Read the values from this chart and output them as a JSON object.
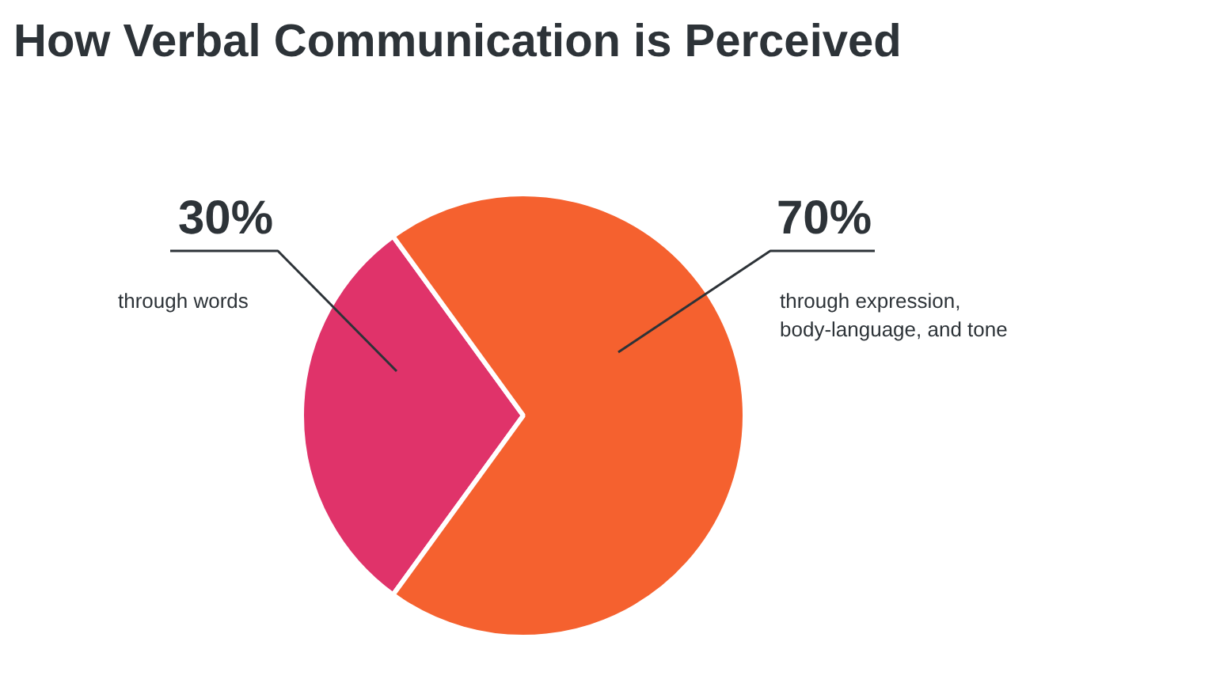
{
  "chart_data": {
    "type": "pie",
    "title": "How Verbal Communication is Perceived",
    "categories": [
      "through words",
      "through expression,\nbody-language, and tone"
    ],
    "values": [
      30,
      70
    ],
    "colors": [
      "#e0336a",
      "#f5612f"
    ],
    "value_labels": [
      "30%",
      "70%"
    ]
  }
}
